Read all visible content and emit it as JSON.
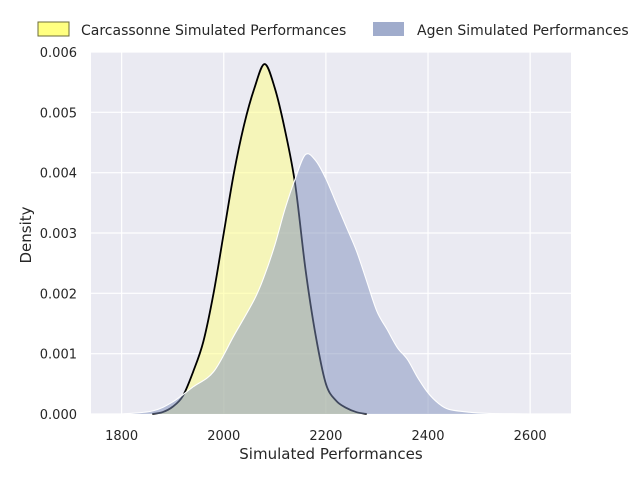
{
  "chart_data": {
    "type": "area",
    "title": "",
    "xlabel": "Simulated Performances",
    "ylabel": "Density",
    "xlim": [
      1740,
      2680
    ],
    "ylim": [
      0,
      0.006
    ],
    "xticks": [
      1800,
      2000,
      2200,
      2400,
      2600
    ],
    "xtick_labels": [
      "1800",
      "2000",
      "2200",
      "2400",
      "2600"
    ],
    "yticks": [
      0,
      0.001,
      0.002,
      0.003,
      0.004,
      0.005,
      0.006
    ],
    "ytick_labels": [
      "0.000",
      "0.001",
      "0.002",
      "0.003",
      "0.004",
      "0.005",
      "0.006"
    ],
    "grid": true,
    "background": "#eaeaf2",
    "legend_position": "top",
    "series": [
      {
        "name": "Carcassonne Simulated Performances",
        "fill_color": "#ffff80",
        "line_color": "#000000",
        "fill_opacity": 0.5,
        "points": [
          [
            1860,
            0.0
          ],
          [
            1880,
            3e-05
          ],
          [
            1900,
            0.00012
          ],
          [
            1920,
            0.0003
          ],
          [
            1940,
            0.0007
          ],
          [
            1960,
            0.0012
          ],
          [
            1980,
            0.002
          ],
          [
            2000,
            0.003
          ],
          [
            2020,
            0.004
          ],
          [
            2040,
            0.0048
          ],
          [
            2060,
            0.0054
          ],
          [
            2080,
            0.0058
          ],
          [
            2100,
            0.0054
          ],
          [
            2120,
            0.0047
          ],
          [
            2140,
            0.0038
          ],
          [
            2160,
            0.0024
          ],
          [
            2180,
            0.0013
          ],
          [
            2200,
            0.0005
          ],
          [
            2220,
            0.00022
          ],
          [
            2240,
            0.0001
          ],
          [
            2260,
            3e-05
          ],
          [
            2280,
            0.0
          ]
        ]
      },
      {
        "name": "Agen Simulated Performances",
        "fill_color": "#8090bb",
        "line_color": "#ffffff",
        "fill_opacity": 0.5,
        "points": [
          [
            1800,
            0.0
          ],
          [
            1860,
            5e-05
          ],
          [
            1900,
            0.0002
          ],
          [
            1940,
            0.00045
          ],
          [
            1980,
            0.0007
          ],
          [
            2020,
            0.0013
          ],
          [
            2060,
            0.0019
          ],
          [
            2080,
            0.0023
          ],
          [
            2100,
            0.0028
          ],
          [
            2120,
            0.0034
          ],
          [
            2140,
            0.0039
          ],
          [
            2160,
            0.0043
          ],
          [
            2180,
            0.0042
          ],
          [
            2200,
            0.0039
          ],
          [
            2220,
            0.0035
          ],
          [
            2240,
            0.0031
          ],
          [
            2260,
            0.0027
          ],
          [
            2280,
            0.0022
          ],
          [
            2300,
            0.0017
          ],
          [
            2320,
            0.0014
          ],
          [
            2340,
            0.0011
          ],
          [
            2360,
            0.0009
          ],
          [
            2380,
            0.0006
          ],
          [
            2400,
            0.00035
          ],
          [
            2420,
            0.00018
          ],
          [
            2440,
            8e-05
          ],
          [
            2480,
            3e-05
          ],
          [
            2520,
            1e-05
          ],
          [
            2600,
            0.0
          ]
        ]
      }
    ]
  }
}
